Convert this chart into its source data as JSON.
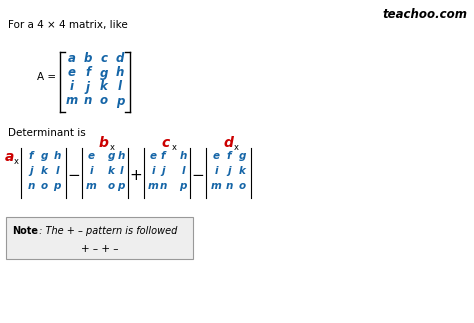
{
  "title": "teachoo.com",
  "bg_color": "#ffffff",
  "text_color_black": "#000000",
  "text_color_blue": "#1565a7",
  "text_color_red": "#cc0000",
  "for_text": "For a 4 × 4 matrix, like",
  "det_text": "Determinant is",
  "note_text_bold": "Note",
  "note_text_rest": " : The + – pattern is followed",
  "pattern_text": "+ – + –",
  "matrix_rows": [
    [
      "a",
      "b",
      "c",
      "d"
    ],
    [
      "e",
      "f",
      "g",
      "h"
    ],
    [
      "i",
      "j",
      "k",
      "l"
    ],
    [
      "m",
      "n",
      "o",
      "p"
    ]
  ],
  "det1_rows": [
    [
      "f",
      "g",
      "h"
    ],
    [
      "j",
      "k",
      "l"
    ],
    [
      "n",
      "o",
      "p"
    ]
  ],
  "det2_rows": [
    [
      "e",
      "",
      "g",
      "h"
    ],
    [
      "i",
      "",
      "k",
      "l"
    ],
    [
      "m",
      "",
      "o",
      "p"
    ]
  ],
  "det3_rows": [
    [
      "e",
      "f",
      "",
      "h"
    ],
    [
      "i",
      "j",
      "",
      "l"
    ],
    [
      "m",
      "n",
      "",
      "p"
    ]
  ],
  "det4_rows": [
    [
      "e",
      "f",
      "g"
    ],
    [
      "i",
      "j",
      "k"
    ],
    [
      "m",
      "n",
      "o"
    ]
  ],
  "det_labels": [
    "a",
    "b",
    "c",
    "d"
  ],
  "det_ops": [
    "−",
    "+",
    "−"
  ]
}
